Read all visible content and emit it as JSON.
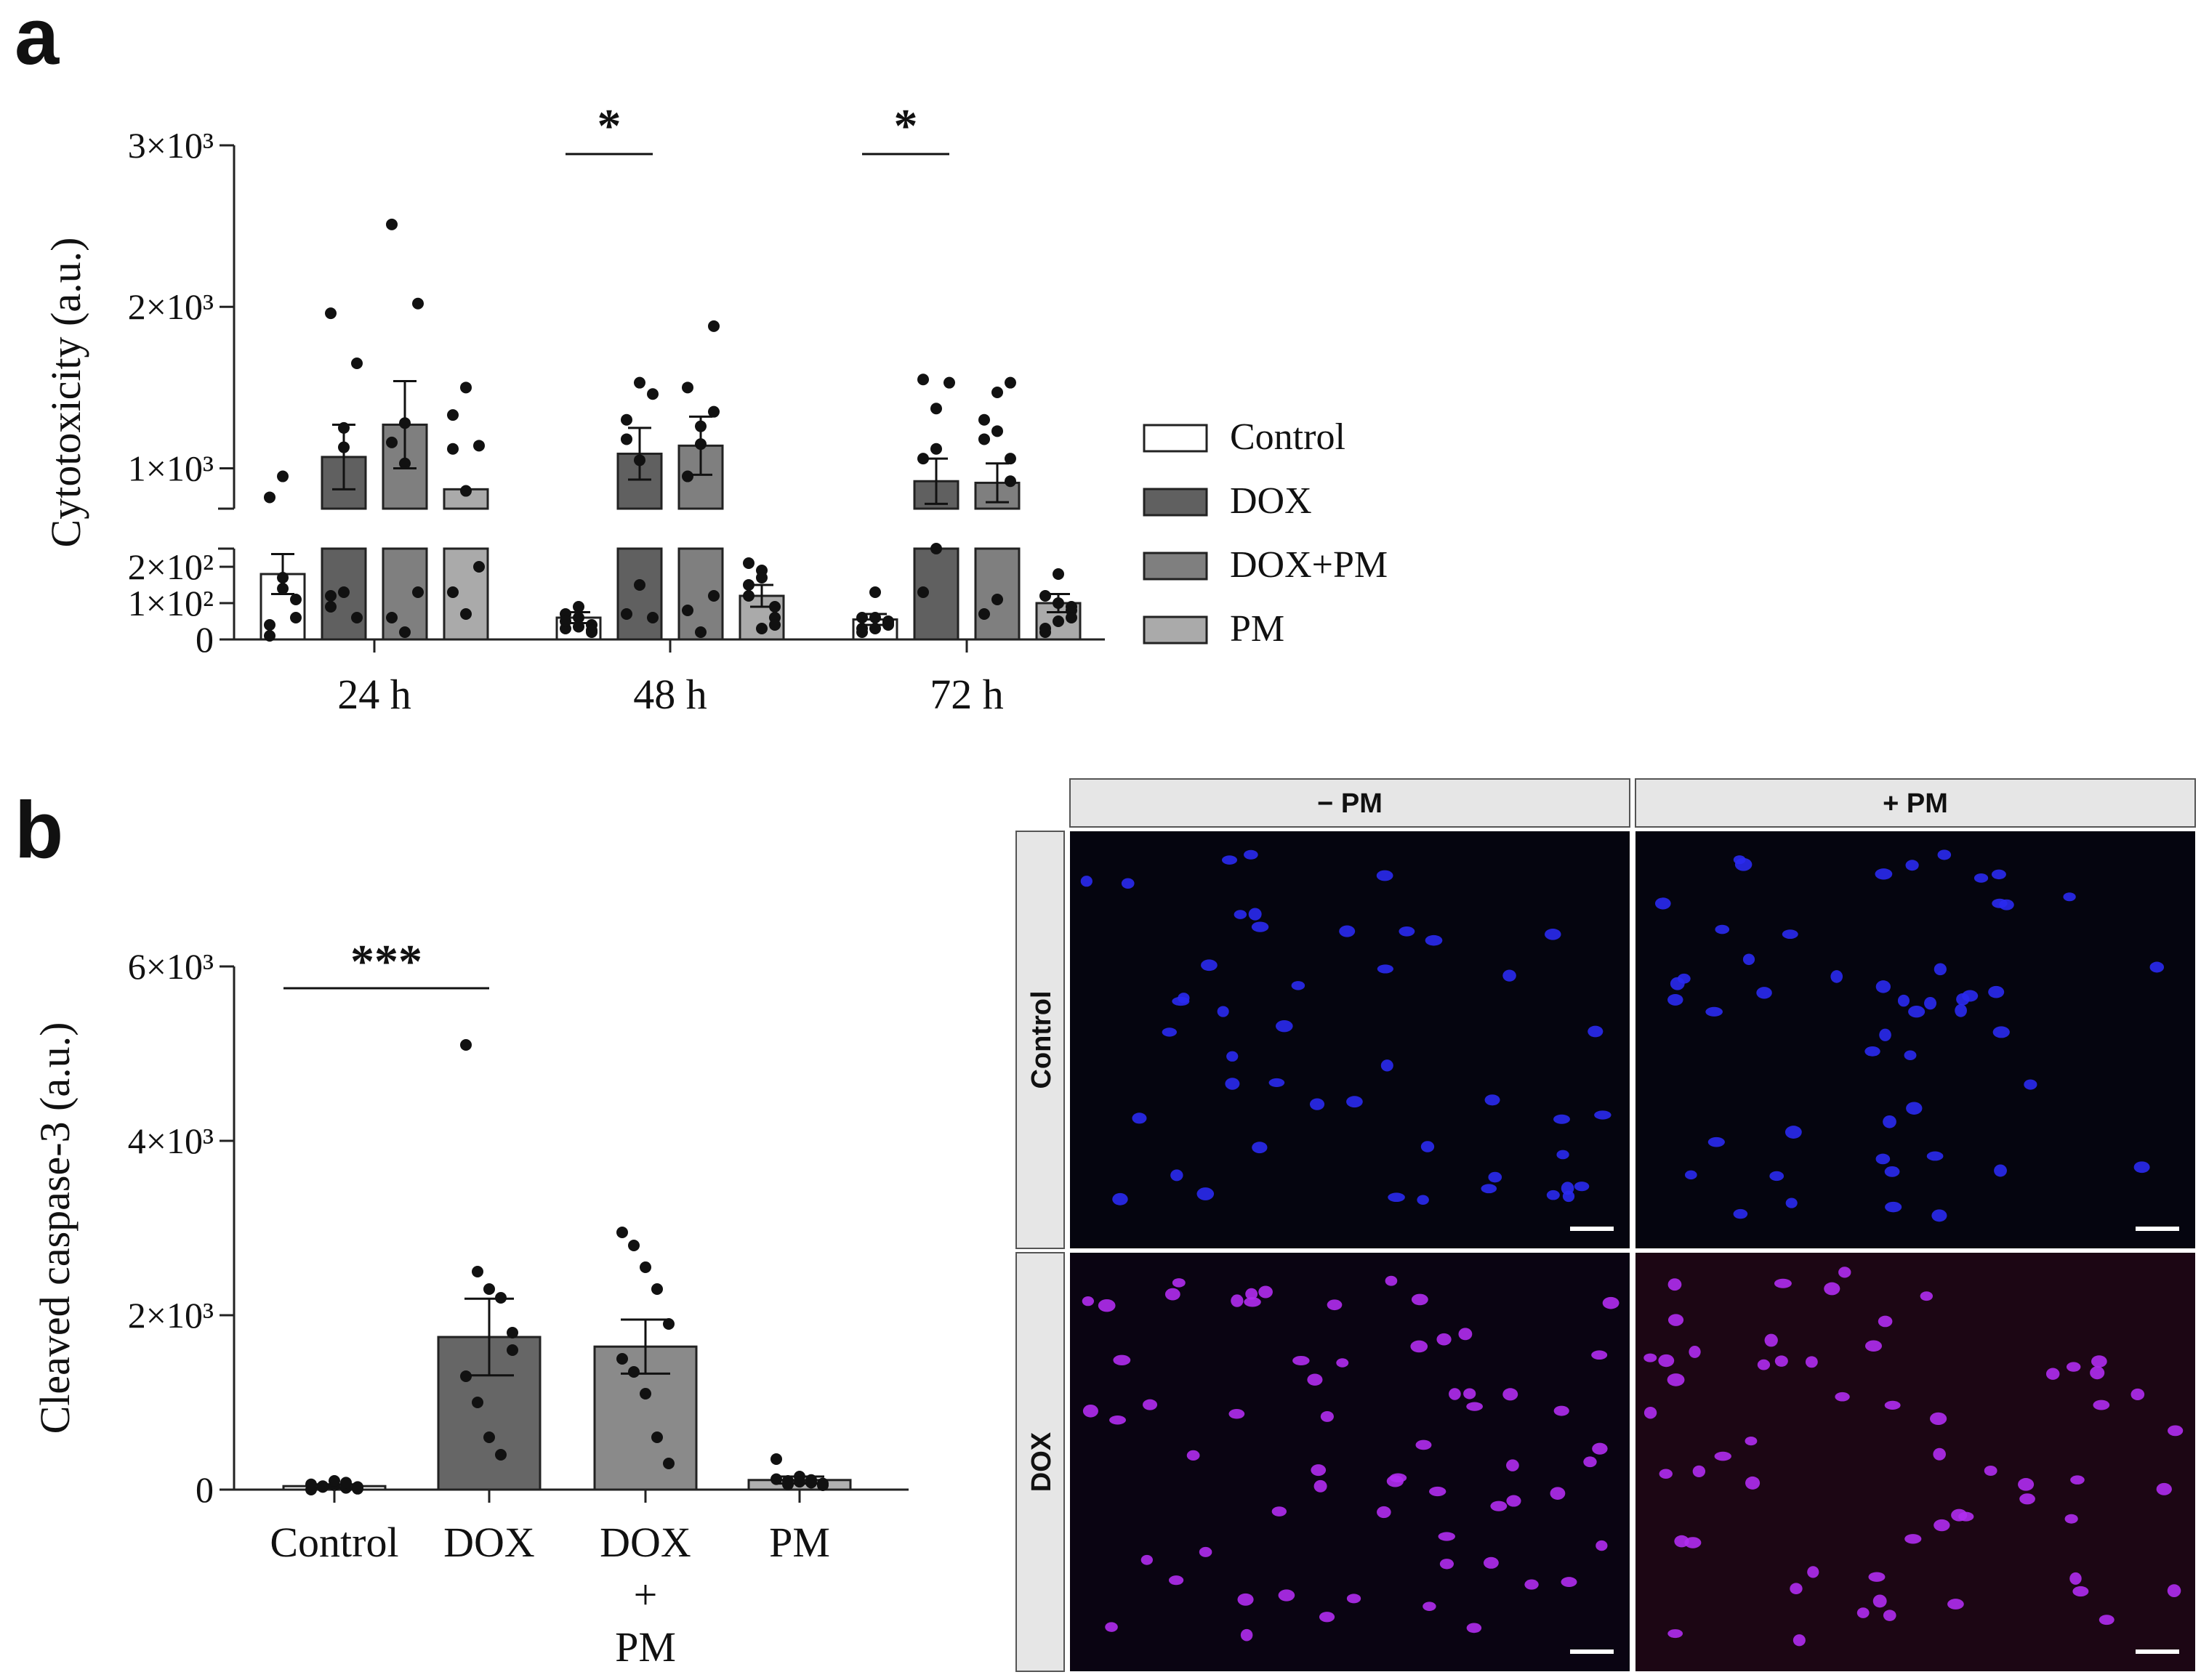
{
  "panel_a_label": "a",
  "panel_b_label": "b",
  "chart_data": [
    {
      "type": "bar",
      "ylabel": "Cytotoxicity (a.u.)",
      "y_axis": "broken",
      "ylim_lower": [
        0,
        250
      ],
      "ylim_upper": [
        750,
        3000
      ],
      "lower_ticks": [
        {
          "value": 0,
          "label": "0"
        },
        {
          "value": 100,
          "label": "1×10²"
        },
        {
          "value": 200,
          "label": "2×10²"
        }
      ],
      "upper_ticks": [
        {
          "value": 1000,
          "label": "1×10³"
        },
        {
          "value": 2000,
          "label": "2×10³"
        },
        {
          "value": 3000,
          "label": "3×10³"
        }
      ],
      "categories": [
        "24 h",
        "48 h",
        "72 h"
      ],
      "legend_position": "right",
      "series": [
        {
          "name": "Control",
          "color": "#ffffff",
          "means": [
            180,
            60,
            55
          ],
          "sems": [
            55,
            15,
            15
          ],
          "points": [
            [
              40,
              140,
              60,
              10,
              170,
              110,
              820,
              950
            ],
            [
              30,
              60,
              20,
              70,
              90,
              40,
              50,
              35,
              25
            ],
            [
              30,
              60,
              40,
              20,
              130,
              50,
              60,
              30,
              45
            ]
          ]
        },
        {
          "name": "DOX",
          "color": "#606060",
          "means": [
            1070,
            1090,
            920
          ],
          "sems": [
            200,
            160,
            140
          ],
          "points": [
            [
              90,
              130,
              60,
              120,
              1250,
              1650,
              1960,
              1130
            ],
            [
              70,
              150,
              60,
              1300,
              1530,
              1460,
              1180,
              1050
            ],
            [
              130,
              250,
              280,
              1060,
              1370,
              1530,
              1550,
              1120
            ]
          ]
        },
        {
          "name": "DOX+PM",
          "color": "#7f7f7f",
          "means": [
            1270,
            1140,
            910
          ],
          "sems": [
            270,
            180,
            120
          ],
          "points": [
            [
              60,
              20,
              130,
              1160,
              1280,
              2020,
              2510,
              1030
            ],
            [
              80,
              20,
              120,
              950,
              1260,
              1880,
              1500,
              1150,
              1350
            ],
            [
              70,
              110,
              1060,
              1300,
              1470,
              1530,
              1180,
              1230,
              920
            ]
          ]
        },
        {
          "name": "PM",
          "color": "#aaaaaa",
          "means": [
            870,
            120,
            100
          ],
          "sems": [
            130,
            30,
            25
          ],
          "points": [
            [
              130,
              70,
              200,
              1330,
              1500,
              1140,
              1120,
              860
            ],
            [
              210,
              190,
              90,
              150,
              30,
              60,
              120,
              170,
              40
            ],
            [
              30,
              50,
              80,
              120,
              180,
              60,
              20,
              100,
              90
            ]
          ]
        }
      ],
      "significance": [
        {
          "category": "48 h",
          "label": "*"
        },
        {
          "category": "72 h",
          "label": "*"
        }
      ]
    },
    {
      "type": "bar",
      "ylabel": "Cleaved caspase-3 (a.u.)",
      "ylim": [
        0,
        6000
      ],
      "ticks": [
        {
          "value": 0,
          "label": "0"
        },
        {
          "value": 2000,
          "label": "2×10³"
        },
        {
          "value": 4000,
          "label": "4×10³"
        },
        {
          "value": 6000,
          "label": "6×10³"
        }
      ],
      "categories": [
        "Control",
        "DOX",
        "DOX\n+\nPM",
        "PM"
      ],
      "category_lines": [
        [
          "Control"
        ],
        [
          "DOX"
        ],
        [
          "DOX",
          "+",
          "PM"
        ],
        [
          "PM"
        ]
      ],
      "colors": [
        "#ffffff",
        "#666666",
        "#8a8a8a",
        "#b0b0b0"
      ],
      "values": [
        40,
        1750,
        1640,
        110
      ],
      "sems": [
        20,
        440,
        310,
        40
      ],
      "points": [
        [
          0,
          30,
          50,
          20,
          10,
          60,
          40,
          100,
          80,
          30
        ],
        [
          5100,
          2500,
          2300,
          2200,
          1600,
          1300,
          1000,
          600,
          400,
          1800
        ],
        [
          2950,
          2800,
          2550,
          2300,
          1900,
          1500,
          1350,
          1100,
          600,
          300
        ],
        [
          350,
          100,
          150,
          80,
          50,
          120,
          60,
          90,
          110,
          70
        ]
      ],
      "significance": {
        "from": "Control",
        "to": "DOX",
        "label": "***"
      }
    }
  ],
  "micrograph": {
    "column_headers": [
      "− PM",
      "+ PM"
    ],
    "row_headers": [
      "Control",
      "DOX"
    ],
    "nucleus_color": "#2a2af0",
    "apoptotic_color": "#b02cf0"
  }
}
